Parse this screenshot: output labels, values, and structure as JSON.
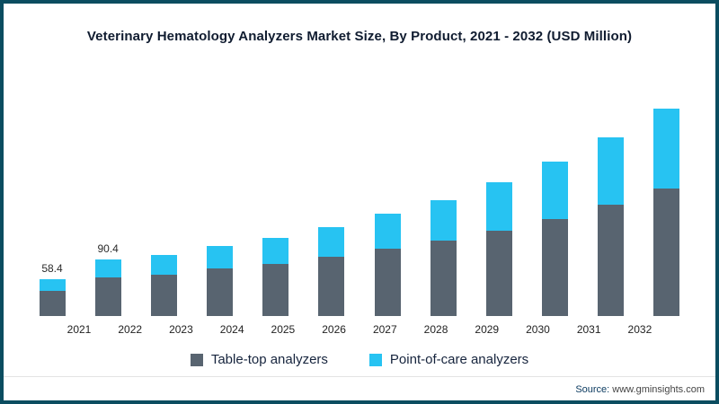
{
  "title": "Veterinary Hematology Analyzers Market Size, By Product, 2021 - 2032  (USD Million)",
  "frame_color": "#0b4d60",
  "footer": {
    "source_label": "Source:",
    "source_text": "www.gminsights.com"
  },
  "chart_data": {
    "type": "bar",
    "stacked": true,
    "title": "Veterinary Hematology Analyzers Market Size, By Product, 2021 - 2032  (USD Million)",
    "xlabel": "",
    "ylabel": "USD Million",
    "ylim": [
      0,
      360
    ],
    "grid": false,
    "legend_position": "bottom",
    "categories": [
      "2021",
      "2022",
      "2023",
      "2024",
      "2025",
      "2026",
      "2027",
      "2028",
      "2029",
      "2030",
      "2031",
      "2032"
    ],
    "series": [
      {
        "name": "Table-top analyzers",
        "color": "#586470",
        "values": [
          41.0,
          62.0,
          67.0,
          76.0,
          84.0,
          95.0,
          108.0,
          121.0,
          137.0,
          156.0,
          178.0,
          205.0
        ]
      },
      {
        "name": "Point-of-care analyzers",
        "color": "#27c3f2",
        "values": [
          17.4,
          28.4,
          31.0,
          36.5,
          41.3,
          48.0,
          56.8,
          65.5,
          77.2,
          91.6,
          108.9,
          127.4
        ]
      }
    ],
    "totals": [
      58.4,
      90.4,
      98.0,
      112.5,
      125.3,
      143.0,
      164.8,
      186.5,
      214.2,
      247.6,
      286.9,
      332.4
    ],
    "data_labels": [
      "58.4",
      "90.4",
      "",
      "",
      "",
      "",
      "",
      "",
      "",
      "",
      "",
      ""
    ]
  }
}
